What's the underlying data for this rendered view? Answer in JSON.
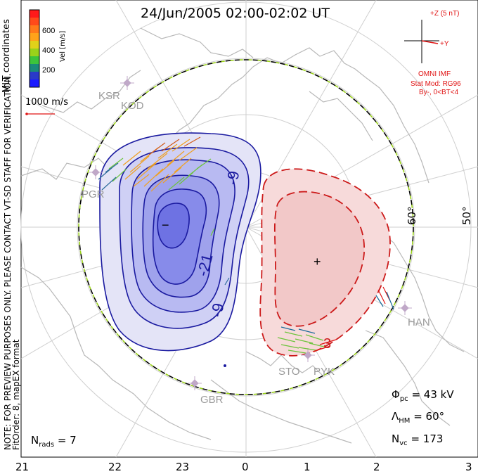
{
  "title": "24/Jun/2005 02:00-02:02 UT",
  "coord_label": "MLT coordinates",
  "colorbar": {
    "unit_label": "Vel [m/s]",
    "ticks": [
      "600",
      "400",
      "200"
    ],
    "colors": [
      "#ff1a1a",
      "#ff6a1a",
      "#ffa31a",
      "#e0d21a",
      "#9ad21a",
      "#3cc43c",
      "#1aa07a",
      "#1a6a9a",
      "#2a3ac8",
      "#1a1aff"
    ]
  },
  "scale_vector": "1000 m/s",
  "notice": "NOTE: FOR PREVIEW PURPOSES ONLY. PLEASE CONTACT VT-SD STAFF FOR VERIFICATION.",
  "fit_info": "FitOrder: 8, mapEX format",
  "imf": {
    "z_label": "+Z (5 nT)",
    "y_label": "+Y",
    "source": "OMNI IMF",
    "model": "Stat Mod: RG96",
    "bin": "By-, 0<BT<4"
  },
  "lat_labels": [
    "60°",
    "50°"
  ],
  "stations": [
    "KSR",
    "KOD",
    "PGR",
    "HAN",
    "STO",
    "PYK",
    "GBR"
  ],
  "contours": {
    "negative": [
      "-9",
      "-21",
      "-9"
    ],
    "positive": [
      "3"
    ],
    "min_marker": "−",
    "max_marker": "+"
  },
  "stats": {
    "phi_label": "Φ",
    "phi_sub": "pc",
    "phi_value": "= 43 kV",
    "lambda_label": "Λ",
    "lambda_sub": "HM",
    "lambda_value": "= 60°",
    "nvc_label": "N",
    "nvc_sub": "vc",
    "nvc_value": "= 173",
    "nrads_label": "N",
    "nrads_sub": "rads",
    "nrads_value": "= 7"
  },
  "mlt_ticks": [
    "21",
    "22",
    "23",
    "0",
    "1",
    "2",
    "3"
  ]
}
